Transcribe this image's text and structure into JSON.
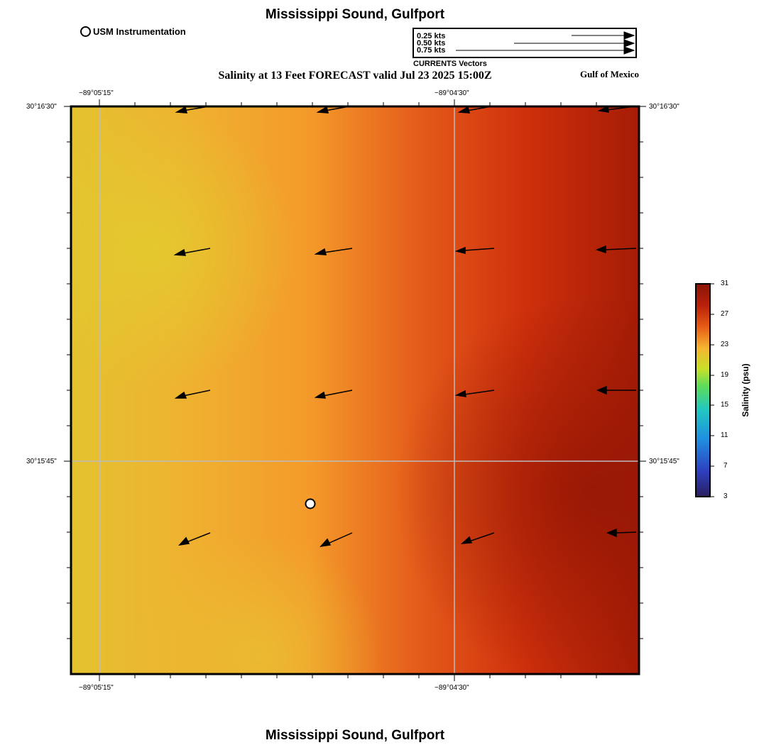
{
  "header": {
    "title": "Mississippi Sound, Gulfport",
    "subtitle": "Salinity at 13 Feet FORECAST valid Jul 23 2025 15:00Z",
    "region_label": "Gulf of Mexico",
    "footer_title": "Mississippi Sound, Gulfport"
  },
  "legend": {
    "station_label": "USM Instrumentation",
    "vectors": {
      "caption": "CURRENTS Vectors",
      "items": [
        {
          "label": "0.25 kts",
          "speed": 0.25
        },
        {
          "label": "0.50 kts",
          "speed": 0.5
        },
        {
          "label": "0.75 kts",
          "speed": 0.75
        }
      ]
    }
  },
  "axes": {
    "top_labels": [
      "−89°05'15\"",
      "−89°04'30\""
    ],
    "bottom_labels": [
      "−89°05'15\"",
      "−89°04'30\""
    ],
    "left_labels": [
      "30°16'30\"",
      "30°15'45\""
    ],
    "right_labels": [
      "30°16'30\"",
      "30°15'45\""
    ]
  },
  "colorbar": {
    "title": "Salinity (psu)",
    "ticks": [
      "3",
      "7",
      "11",
      "15",
      "19",
      "23",
      "27",
      "31"
    ],
    "min": 3,
    "max": 31,
    "colors": [
      "#2a1f5e",
      "#2e3fbf",
      "#1f8fe0",
      "#22c8c0",
      "#5fdc5a",
      "#c8e02a",
      "#f5b431",
      "#e65a14",
      "#b8200a",
      "#8a1508"
    ]
  },
  "map": {
    "station": {
      "name": "USM Instrumentation"
    },
    "salinity_colors": {
      "low": "#e2c62f",
      "mid": "#f6a12d",
      "high": "#dc3d0f",
      "max": "#9e1a05"
    }
  }
}
